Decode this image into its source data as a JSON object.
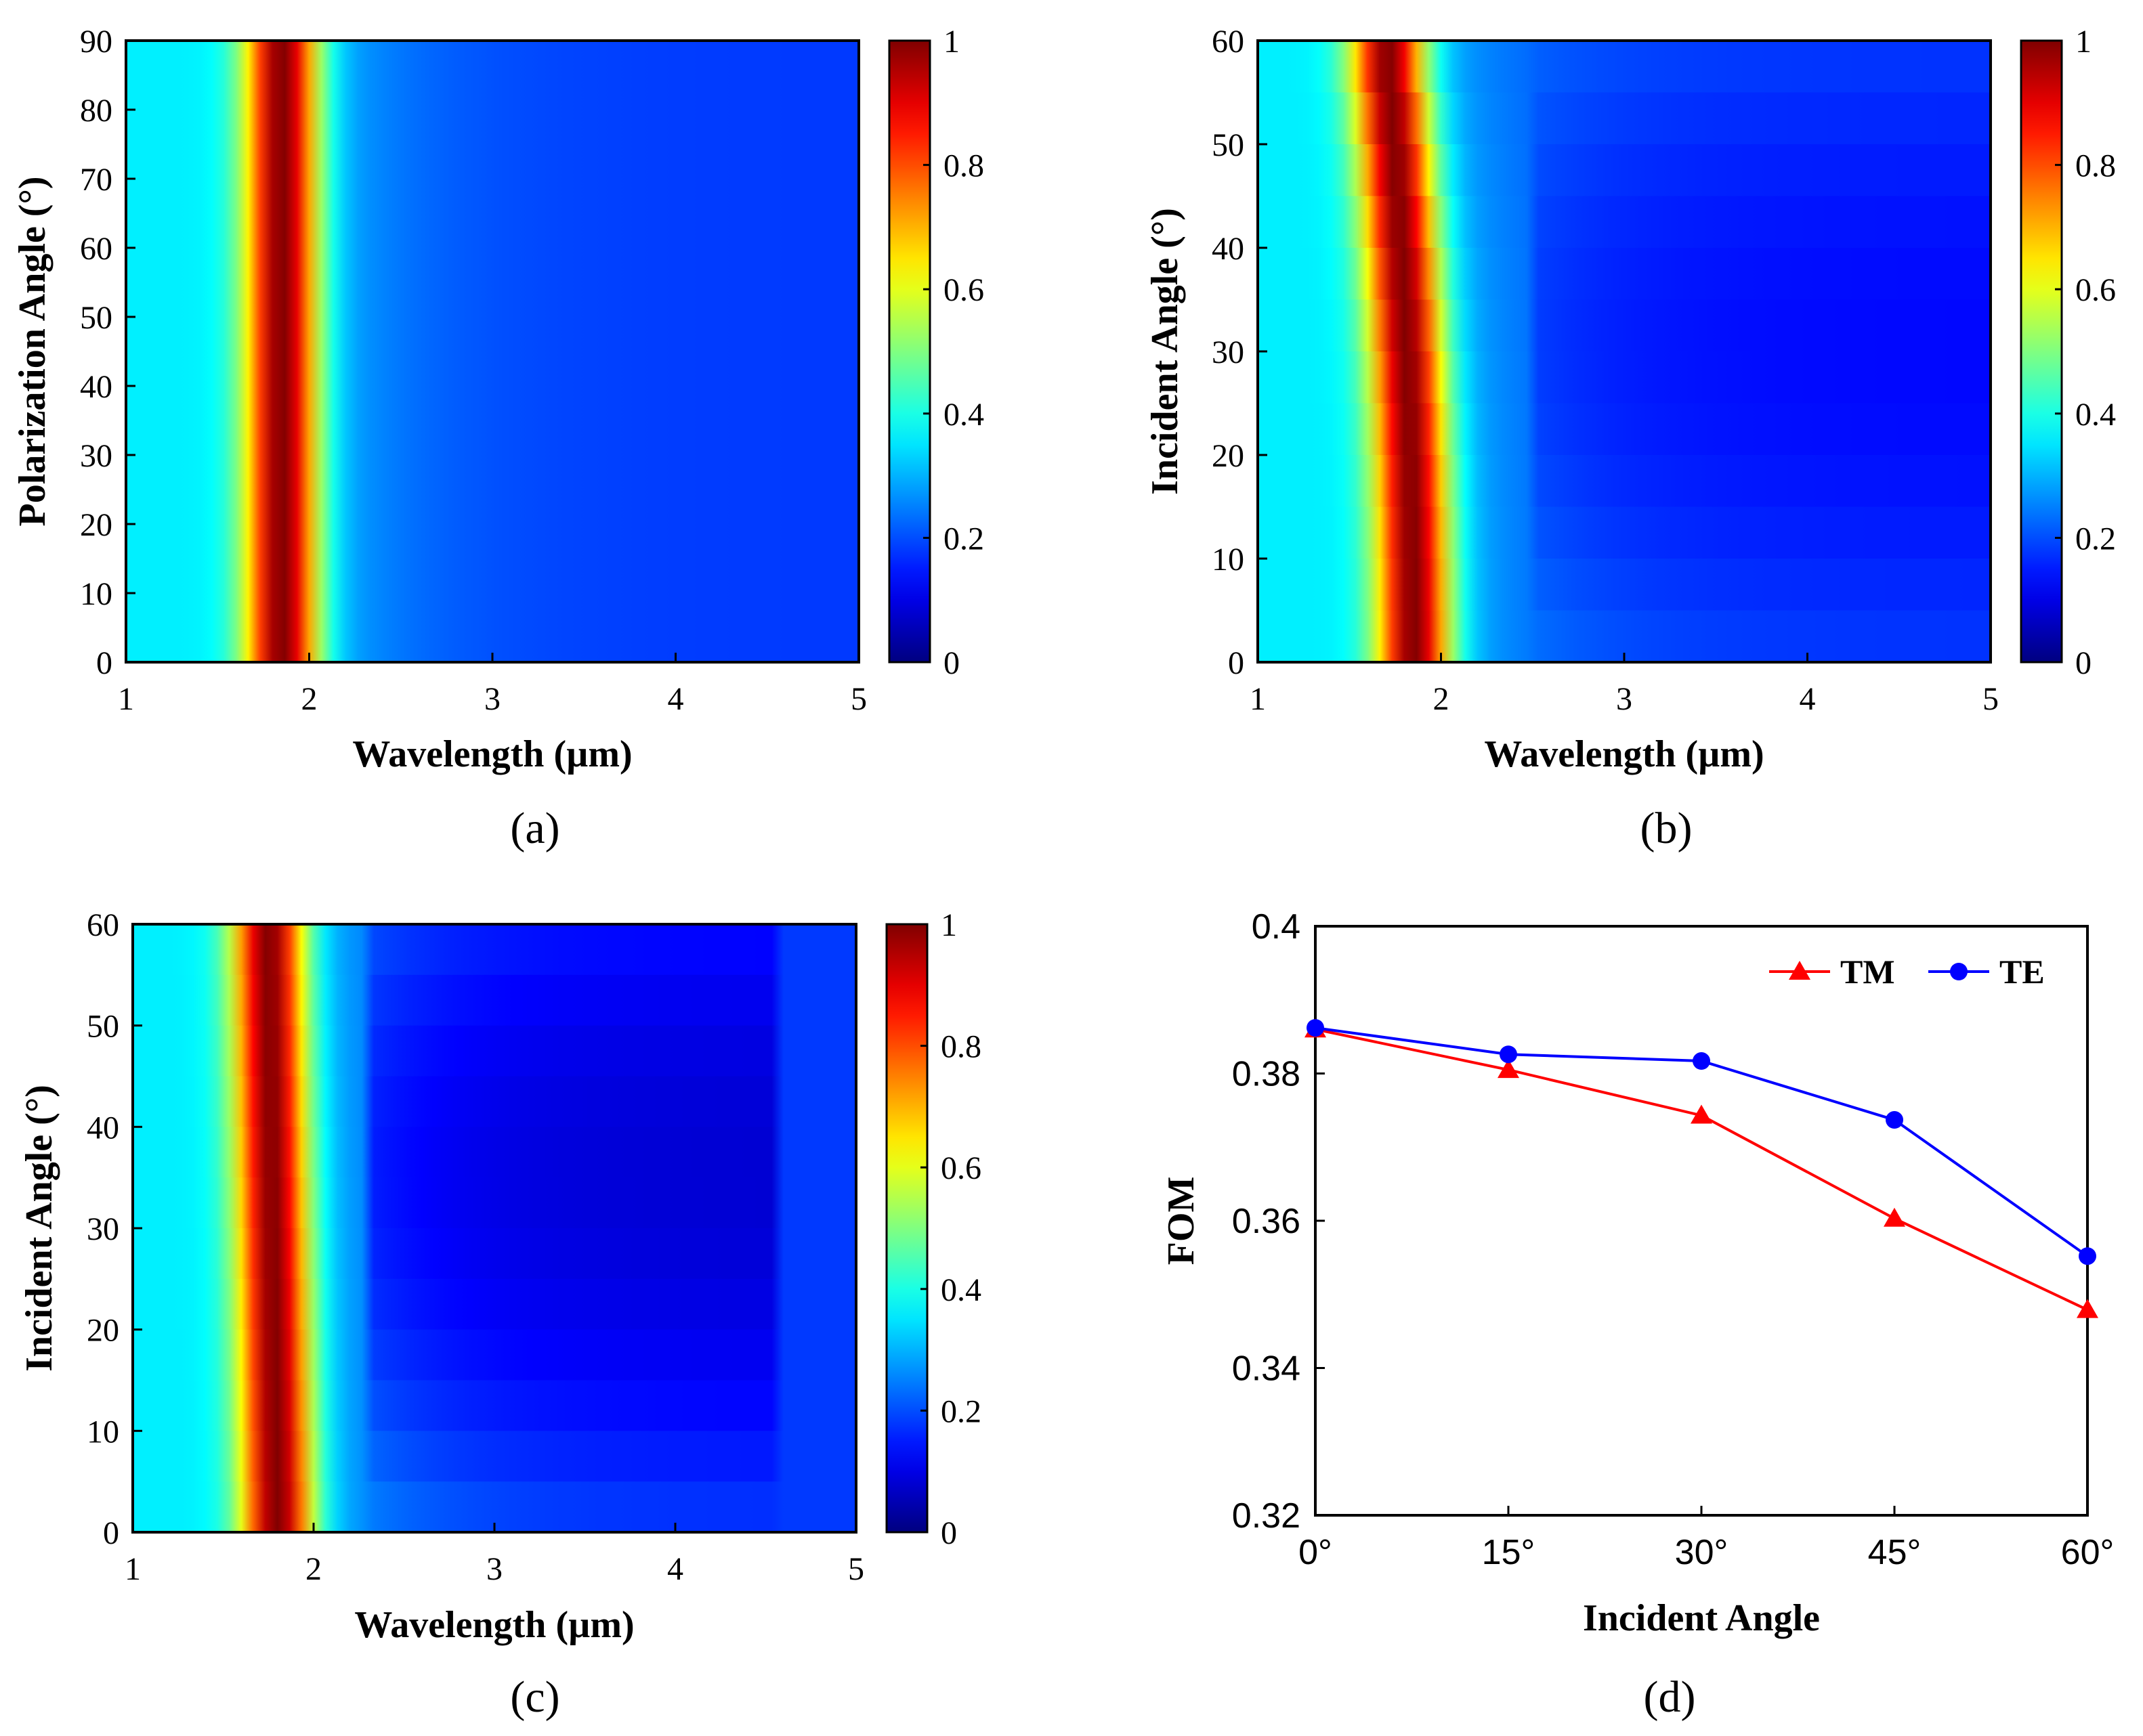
{
  "chart_data": [
    {
      "id": "a",
      "type": "heatmap",
      "panel_label": "(a)",
      "xlabel": "Wavelength (µm)",
      "ylabel": "Polarization Angle (°)",
      "xlim": [
        1,
        5
      ],
      "ylim": [
        0,
        90
      ],
      "xticks": [
        "1",
        "2",
        "3",
        "4",
        "5"
      ],
      "yticks": [
        "0",
        "10",
        "20",
        "30",
        "40",
        "50",
        "60",
        "70",
        "80",
        "90"
      ],
      "colorbar_ticks": [
        "0",
        "0.2",
        "0.4",
        "0.6",
        "0.8",
        "1"
      ],
      "colorbar_range": [
        0,
        1
      ],
      "colormap": "jet",
      "peak_wavelength_um": 1.85,
      "peak_value": 1.0,
      "note_angle_dependence": "none"
    },
    {
      "id": "b",
      "type": "heatmap",
      "panel_label": "(b)",
      "xlabel": "Wavelength (µm)",
      "ylabel": "Incident Angle (°)",
      "xlim": [
        1,
        5
      ],
      "ylim": [
        0,
        60
      ],
      "xticks": [
        "1",
        "2",
        "3",
        "4",
        "5"
      ],
      "yticks": [
        "0",
        "10",
        "20",
        "30",
        "40",
        "50",
        "60"
      ],
      "colorbar_ticks": [
        "0",
        "0.2",
        "0.4",
        "0.6",
        "0.8",
        "1"
      ],
      "colorbar_range": [
        0,
        1
      ],
      "colormap": "jet",
      "peak_wavelength_um_at_0deg": 1.85,
      "peak_wavelength_um_at_60deg": 1.7,
      "peak_value": 1.0
    },
    {
      "id": "c",
      "type": "heatmap",
      "panel_label": "(c)",
      "xlabel": "Wavelength (µm)",
      "ylabel": "Incident Angle (°)",
      "xlim": [
        1,
        5
      ],
      "ylim": [
        0,
        60
      ],
      "xticks": [
        "1",
        "2",
        "3",
        "4",
        "5"
      ],
      "yticks": [
        "0",
        "10",
        "20",
        "30",
        "40",
        "50",
        "60"
      ],
      "colorbar_ticks": [
        "0",
        "0.2",
        "0.4",
        "0.6",
        "0.8",
        "1"
      ],
      "colorbar_range": [
        0,
        1
      ],
      "colormap": "jet",
      "peak_wavelength_um_at_0deg": 1.8,
      "peak_wavelength_um_at_60deg": 1.75,
      "peak_value": 1.0
    },
    {
      "id": "d",
      "type": "line",
      "panel_label": "(d)",
      "xlabel": "Incident Angle",
      "ylabel": "FOM",
      "categories": [
        "0°",
        "15°",
        "30°",
        "45°",
        "60°"
      ],
      "ylim": [
        0.32,
        0.4
      ],
      "yticks": [
        "0.32",
        "0.34",
        "0.36",
        "0.38",
        "0.4"
      ],
      "legend_position": "top-right",
      "series": [
        {
          "name": "TM",
          "color": "#ff0000",
          "marker": "triangle",
          "values": [
            0.386,
            0.3805,
            0.3743,
            0.3603,
            0.3479
          ]
        },
        {
          "name": "TE",
          "color": "#0000ff",
          "marker": "circle",
          "values": [
            0.3862,
            0.3826,
            0.3817,
            0.3737,
            0.3552
          ]
        }
      ]
    }
  ]
}
